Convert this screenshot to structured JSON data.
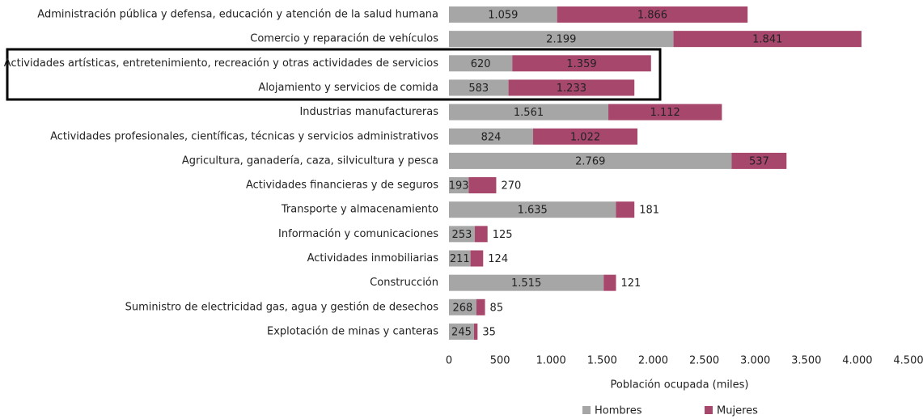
{
  "chart_data": {
    "type": "stacked_barh",
    "xlabel": "Población ocupada (miles)",
    "categories": [
      "Administración pública y defensa, educación y atención de la salud humana",
      "Comercio y reparación de vehículos",
      "Actividades artísticas, entretenimiento, recreación y otras actividades de servicios",
      "Alojamiento y servicios de comida",
      "Industrias manufactureras",
      "Actividades profesionales, científicas, técnicas y servicios administrativos",
      "Agricultura, ganadería, caza, silvicultura y pesca",
      "Actividades financieras y de seguros",
      "Transporte y almacenamiento",
      "Información y comunicaciones",
      "Actividades inmobiliarias",
      "Construcción",
      "Suministro de electricidad gas, agua y gestión de desechos",
      "Explotación de minas y canteras"
    ],
    "series": [
      {
        "name": "Hombres",
        "color": "#a6a6a6",
        "values": [
          1059,
          2199,
          620,
          583,
          1561,
          824,
          2769,
          193,
          1635,
          253,
          211,
          1515,
          268,
          245
        ],
        "value_labels": [
          "1.059",
          "2.199",
          "620",
          "583",
          "1.561",
          "824",
          "2.769",
          "193",
          "1.635",
          "253",
          "211",
          "1.515",
          "268",
          "245"
        ]
      },
      {
        "name": "Mujeres",
        "color": "#a8476c",
        "values": [
          1866,
          1841,
          1359,
          1233,
          1112,
          1022,
          537,
          270,
          181,
          125,
          124,
          121,
          85,
          35
        ],
        "value_labels": [
          "1.866",
          "1.841",
          "1.359",
          "1.233",
          "1.112",
          "1.022",
          "537",
          "270",
          "181",
          "125",
          "124",
          "121",
          "85",
          "35"
        ]
      }
    ],
    "xlim": [
      0,
      4500
    ],
    "xticks": [
      0,
      500,
      {
        "value": 1000,
        "label": "1.000"
      },
      {
        "value": 1500,
        "label": "1.500"
      },
      {
        "value": 2000,
        "label": "2.000"
      },
      {
        "value": 2500,
        "label": "2.500"
      },
      {
        "value": 3000,
        "label": "3.000"
      },
      {
        "value": 3500,
        "label": "3.500"
      },
      {
        "value": 4000,
        "label": "4.000"
      },
      {
        "value": 4500,
        "label": "4.500"
      }
    ],
    "legend": "bottom"
  }
}
